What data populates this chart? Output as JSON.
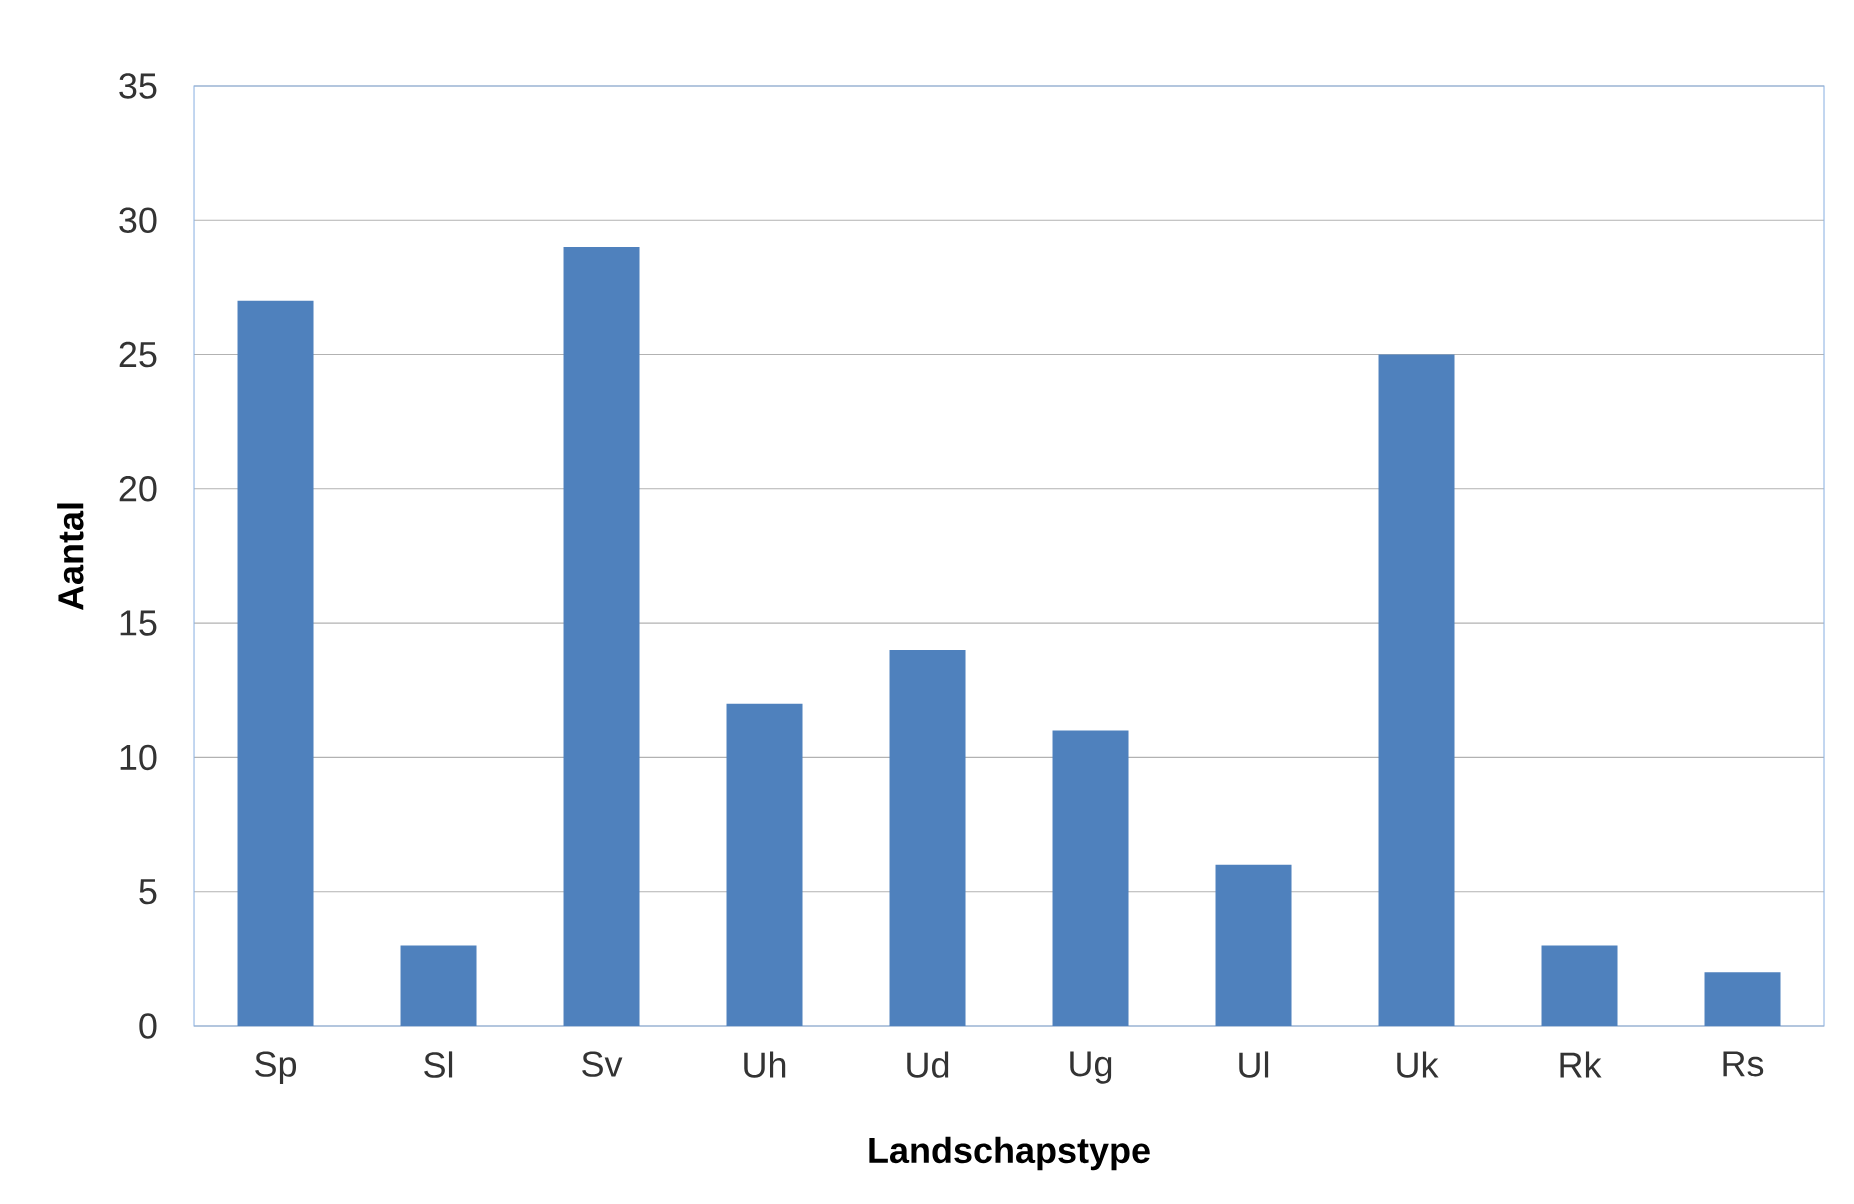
{
  "chart_data": {
    "type": "bar",
    "xlabel": "Landschapstype",
    "ylabel": "Aantal",
    "categories": [
      "Sp",
      "Sl",
      "Sv",
      "Uh",
      "Ud",
      "Ug",
      "Ul",
      "Uk",
      "Rk",
      "Rs"
    ],
    "values": [
      27,
      3,
      29,
      12,
      14,
      11,
      6,
      25,
      3,
      2
    ],
    "color": "#4f81bd",
    "ylim": [
      0,
      35
    ],
    "yticks": [
      0,
      5,
      10,
      15,
      20,
      25,
      30,
      35
    ],
    "grid": "y"
  }
}
